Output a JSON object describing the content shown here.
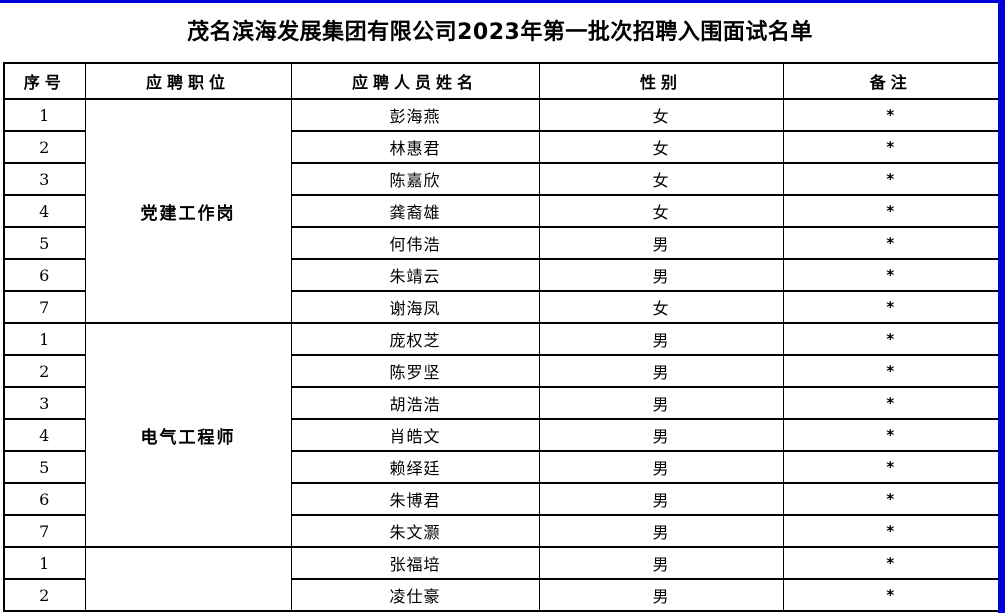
{
  "window": {
    "border_color": "#0000d8"
  },
  "document": {
    "title": "茂名滨海发展集团有限公司2023年第一批次招聘入围面试名单",
    "table": {
      "headers": [
        "序号",
        "应聘职位",
        "应聘人员姓名",
        "性别",
        "备注"
      ],
      "groups": [
        {
          "position": "党建工作岗",
          "rows": [
            {
              "no": "1",
              "name": "彭海燕",
              "gender": "女",
              "note": "*"
            },
            {
              "no": "2",
              "name": "林惠君",
              "gender": "女",
              "note": "*"
            },
            {
              "no": "3",
              "name": "陈嘉欣",
              "gender": "女",
              "note": "*"
            },
            {
              "no": "4",
              "name": "龚裔雄",
              "gender": "女",
              "note": "*"
            },
            {
              "no": "5",
              "name": "何伟浩",
              "gender": "男",
              "note": "*"
            },
            {
              "no": "6",
              "name": "朱靖云",
              "gender": "男",
              "note": "*"
            },
            {
              "no": "7",
              "name": "谢海凤",
              "gender": "女",
              "note": "*"
            }
          ]
        },
        {
          "position": "电气工程师",
          "rows": [
            {
              "no": "1",
              "name": "庞权芝",
              "gender": "男",
              "note": "*"
            },
            {
              "no": "2",
              "name": "陈罗坚",
              "gender": "男",
              "note": "*"
            },
            {
              "no": "3",
              "name": "胡浩浩",
              "gender": "男",
              "note": "*"
            },
            {
              "no": "4",
              "name": "肖皓文",
              "gender": "男",
              "note": "*"
            },
            {
              "no": "5",
              "name": "赖绎廷",
              "gender": "男",
              "note": "*"
            },
            {
              "no": "6",
              "name": "朱博君",
              "gender": "男",
              "note": "*"
            },
            {
              "no": "7",
              "name": "朱文灏",
              "gender": "男",
              "note": "*"
            }
          ]
        },
        {
          "position": "",
          "rows": [
            {
              "no": "1",
              "name": "张福培",
              "gender": "男",
              "note": "*"
            },
            {
              "no": "2",
              "name": "凌仕豪",
              "gender": "男",
              "note": "*"
            }
          ]
        }
      ]
    }
  }
}
